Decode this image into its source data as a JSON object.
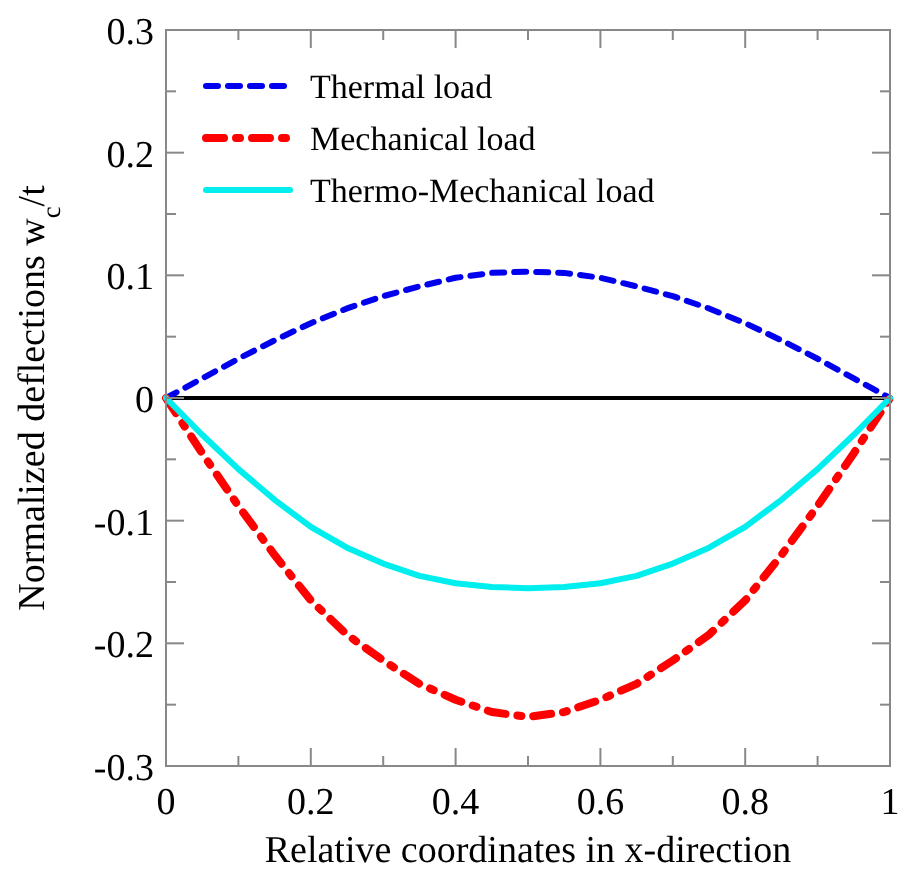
{
  "chart_data": {
    "type": "line",
    "xlabel": "Relative coordinates in x-direction",
    "ylabel": "Normalized deflections w$_{c}$/t",
    "x": [
      0,
      0.05,
      0.1,
      0.15,
      0.2,
      0.25,
      0.3,
      0.35,
      0.4,
      0.45,
      0.5,
      0.55,
      0.6,
      0.65,
      0.7,
      0.75,
      0.8,
      0.85,
      0.9,
      0.95,
      1
    ],
    "series": [
      {
        "name": "Thermal load",
        "color": "#0000ee",
        "line_style": "dashed",
        "values": [
          0,
          0.016,
          0.032,
          0.047,
          0.061,
          0.073,
          0.083,
          0.091,
          0.098,
          0.102,
          0.103,
          0.102,
          0.098,
          0.091,
          0.083,
          0.073,
          0.061,
          0.047,
          0.032,
          0.016,
          0
        ]
      },
      {
        "name": "Mechanical load",
        "color": "#ff0000",
        "line_style": "dashdot",
        "values": [
          0,
          -0.045,
          -0.088,
          -0.128,
          -0.165,
          -0.193,
          -0.214,
          -0.233,
          -0.246,
          -0.256,
          -0.26,
          -0.256,
          -0.246,
          -0.233,
          -0.214,
          -0.193,
          -0.165,
          -0.128,
          -0.088,
          -0.045,
          0
        ]
      },
      {
        "name": "Thermo-Mechanical load",
        "color": "#00eeee",
        "line_style": "solid",
        "values": [
          0,
          -0.03,
          -0.058,
          -0.083,
          -0.105,
          -0.122,
          -0.135,
          -0.145,
          -0.151,
          -0.154,
          -0.155,
          -0.154,
          -0.151,
          -0.145,
          -0.135,
          -0.122,
          -0.105,
          -0.083,
          -0.058,
          -0.03,
          0
        ]
      }
    ],
    "xlim": [
      0,
      1
    ],
    "ylim": [
      -0.3,
      0.3
    ],
    "xticks": [
      0,
      {
        "value": 0.1,
        "label": null
      },
      0.2,
      {
        "value": 0.3,
        "label": null
      },
      0.4,
      {
        "value": 0.5,
        "label": null
      },
      0.6,
      {
        "value": 0.7,
        "label": null
      },
      0.8,
      {
        "value": 0.9,
        "label": null
      },
      1
    ],
    "yticks": [
      -0.3,
      {
        "value": -0.25,
        "label": null
      },
      -0.2,
      {
        "value": -0.15,
        "label": null
      },
      -0.1,
      {
        "value": -0.05,
        "label": null
      },
      0,
      {
        "value": 0.05,
        "label": null
      },
      0.1,
      {
        "value": 0.15,
        "label": null
      },
      0.2,
      {
        "value": 0.25,
        "label": null
      },
      0.3
    ],
    "ref_lines": [
      {
        "axis": "y",
        "value": 0,
        "color": "#000000",
        "line_style": "solid"
      }
    ],
    "legend": "top left",
    "grid": false
  }
}
